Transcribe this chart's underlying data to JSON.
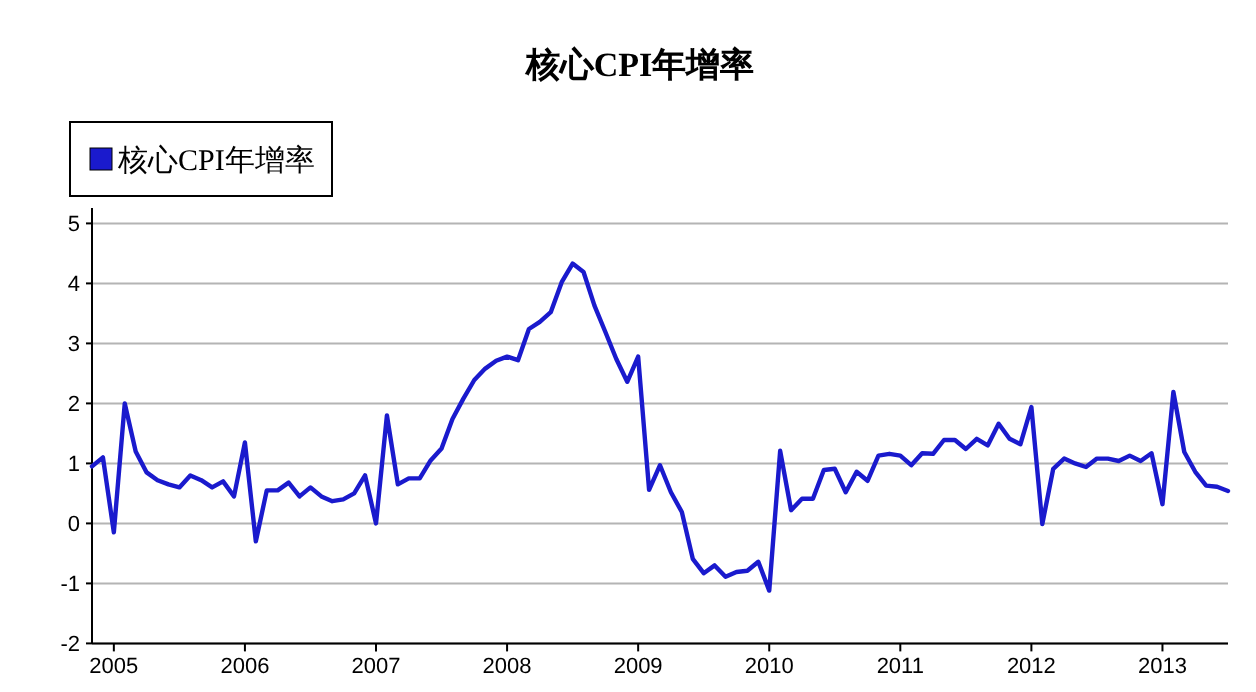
{
  "chart_data": {
    "type": "line",
    "title": "核心CPI年增率",
    "x": [
      "2004-11",
      "2004-12",
      "2005-01",
      "2005-02",
      "2005-03",
      "2005-04",
      "2005-05",
      "2005-06",
      "2005-07",
      "2005-08",
      "2005-09",
      "2005-10",
      "2005-11",
      "2005-12",
      "2006-01",
      "2006-02",
      "2006-03",
      "2006-04",
      "2006-05",
      "2006-06",
      "2006-07",
      "2006-08",
      "2006-09",
      "2006-10",
      "2006-11",
      "2006-12",
      "2007-01",
      "2007-02",
      "2007-03",
      "2007-04",
      "2007-05",
      "2007-06",
      "2007-07",
      "2007-08",
      "2007-09",
      "2007-10",
      "2007-11",
      "2007-12",
      "2008-01",
      "2008-02",
      "2008-03",
      "2008-04",
      "2008-05",
      "2008-06",
      "2008-07",
      "2008-08",
      "2008-09",
      "2008-10",
      "2008-11",
      "2008-12",
      "2009-01",
      "2009-02",
      "2009-03",
      "2009-04",
      "2009-05",
      "2009-06",
      "2009-07",
      "2009-08",
      "2009-09",
      "2009-10",
      "2009-11",
      "2009-12",
      "2010-01",
      "2010-02",
      "2010-03",
      "2010-04",
      "2010-05",
      "2010-06",
      "2010-07",
      "2010-08",
      "2010-09",
      "2010-10",
      "2010-11",
      "2010-12",
      "2011-01",
      "2011-02",
      "2011-03",
      "2011-04",
      "2011-05",
      "2011-06",
      "2011-07",
      "2011-08",
      "2011-09",
      "2011-10",
      "2011-11",
      "2011-12",
      "2012-01",
      "2012-02",
      "2012-03",
      "2012-04",
      "2012-05",
      "2012-06",
      "2012-07",
      "2012-08",
      "2012-09",
      "2012-10",
      "2012-11",
      "2012-12",
      "2013-01",
      "2013-02",
      "2013-03",
      "2013-04",
      "2013-05",
      "2013-06",
      "2013-07"
    ],
    "series": [
      {
        "name": "核心CPI年增率",
        "color": "#1a1acd",
        "values": [
          0.95,
          1.1,
          -0.15,
          2.0,
          1.2,
          0.85,
          0.72,
          0.65,
          0.6,
          0.8,
          0.72,
          0.6,
          0.7,
          0.45,
          1.35,
          -0.3,
          0.55,
          0.55,
          0.68,
          0.45,
          0.6,
          0.45,
          0.37,
          0.4,
          0.5,
          0.8,
          0.0,
          1.8,
          0.65,
          0.75,
          0.75,
          1.05,
          1.25,
          1.74,
          2.08,
          2.39,
          2.58,
          2.71,
          2.78,
          2.72,
          3.24,
          3.36,
          3.52,
          4.02,
          4.33,
          4.19,
          3.63,
          3.19,
          2.74,
          2.36,
          2.78,
          0.56,
          0.97,
          0.52,
          0.19,
          -0.59,
          -0.83,
          -0.7,
          -0.89,
          -0.81,
          -0.79,
          -0.64,
          -1.12,
          1.21,
          0.22,
          0.41,
          0.41,
          0.89,
          0.91,
          0.52,
          0.86,
          0.71,
          1.13,
          1.16,
          1.13,
          0.97,
          1.17,
          1.16,
          1.39,
          1.39,
          1.24,
          1.41,
          1.3,
          1.66,
          1.41,
          1.32,
          1.94,
          -0.01,
          0.91,
          1.08,
          1.0,
          0.94,
          1.08,
          1.08,
          1.04,
          1.13,
          1.04,
          1.17,
          0.32,
          2.19,
          1.19,
          0.86,
          0.63,
          0.61,
          0.54
        ]
      }
    ],
    "xlim": [
      "2004-11",
      "2013-07"
    ],
    "xticks": [
      "2005",
      "2006",
      "2007",
      "2008",
      "2009",
      "2010",
      "2011",
      "2012",
      "2013"
    ],
    "ylim": [
      -2,
      5
    ],
    "yticks": [
      -2,
      -1,
      0,
      1,
      2,
      3,
      4,
      5
    ],
    "grid": "y",
    "legend": "top left"
  }
}
